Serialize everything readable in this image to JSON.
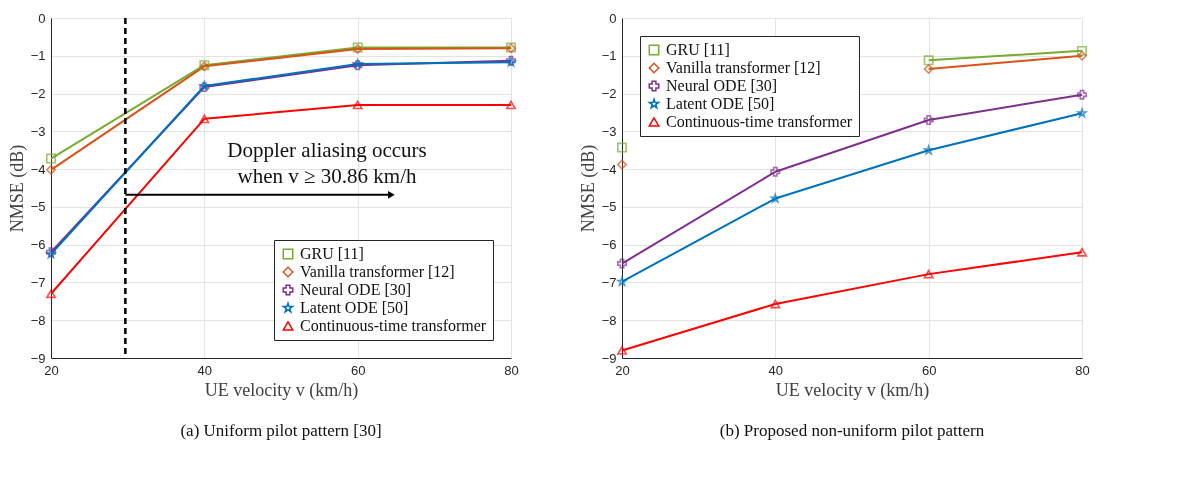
{
  "chart_data": [
    {
      "type": "line",
      "title": "(a) Uniform pilot pattern [30]",
      "xlabel": "UE velocity v (km/h)",
      "ylabel": "NMSE (dB)",
      "x": [
        20,
        40,
        60,
        80
      ],
      "xlim": [
        20,
        80
      ],
      "xticks": [
        20,
        40,
        60,
        80
      ],
      "ylim": [
        -9,
        0
      ],
      "yticks": [
        -9,
        -8,
        -7,
        -6,
        -5,
        -4,
        -3,
        -2,
        -1,
        0
      ],
      "grid": true,
      "legend": "bottom right",
      "line_style": "solid",
      "series": [
        {
          "name": "GRU [11]",
          "color": "#77ac30",
          "marker": "square",
          "values": [
            -3.72,
            -1.25,
            -0.78,
            -0.78
          ]
        },
        {
          "name": "Vanilla transformer [12]",
          "color": "#d95319",
          "marker": "diamond",
          "values": [
            -4.02,
            -1.28,
            -0.82,
            -0.8
          ]
        },
        {
          "name": "Neural ODE [30]",
          "color": "#7e2f8e",
          "marker": "cross",
          "values": [
            -6.2,
            -1.83,
            -1.25,
            -1.13
          ]
        },
        {
          "name": "Latent ODE [50]",
          "color": "#0072bd",
          "marker": "star",
          "values": [
            -6.25,
            -1.8,
            -1.22,
            -1.17
          ]
        },
        {
          "name": "Continuous-time transformer",
          "color": "#ff0000",
          "marker": "triangle",
          "values": [
            -7.3,
            -2.67,
            -2.3,
            -2.3
          ]
        }
      ],
      "ref_lines": [
        {
          "axis": "x",
          "value": 29.7,
          "color": "#000000",
          "line_style": "dashed"
        }
      ],
      "annotations": [
        "Doppler aliasing occurs\nwhen v ≥ 30.86 km/h"
      ]
    },
    {
      "type": "line",
      "title": "(b) Proposed non-uniform pilot pattern",
      "xlabel": "UE velocity v (km/h)",
      "ylabel": "NMSE (dB)",
      "x": [
        20,
        40,
        60,
        80
      ],
      "xlim": [
        20,
        80
      ],
      "xticks": [
        20,
        40,
        60,
        80
      ],
      "ylim": [
        -9,
        0
      ],
      "yticks": [
        -9,
        -8,
        -7,
        -6,
        -5,
        -4,
        -3,
        -2,
        -1,
        0
      ],
      "grid": true,
      "legend": "top left",
      "line_style": "solid",
      "series": [
        {
          "name": "GRU [11]",
          "color": "#77ac30",
          "marker": "square",
          "values": [
            -3.43,
            null,
            -1.12,
            -0.87
          ]
        },
        {
          "name": "Vanilla transformer [12]",
          "color": "#d95319",
          "marker": "diamond",
          "values": [
            -3.88,
            null,
            -1.35,
            -1.0
          ]
        },
        {
          "name": "Neural ODE [30]",
          "color": "#7e2f8e",
          "marker": "cross",
          "values": [
            -6.5,
            -4.07,
            -2.7,
            -2.03
          ]
        },
        {
          "name": "Latent ODE [50]",
          "color": "#0072bd",
          "marker": "star",
          "values": [
            -6.98,
            -4.78,
            -3.5,
            -2.52
          ]
        },
        {
          "name": "Continuous-time transformer",
          "color": "#ff0000",
          "marker": "triangle",
          "values": [
            -8.8,
            -7.57,
            -6.78,
            -6.2
          ]
        }
      ]
    }
  ]
}
